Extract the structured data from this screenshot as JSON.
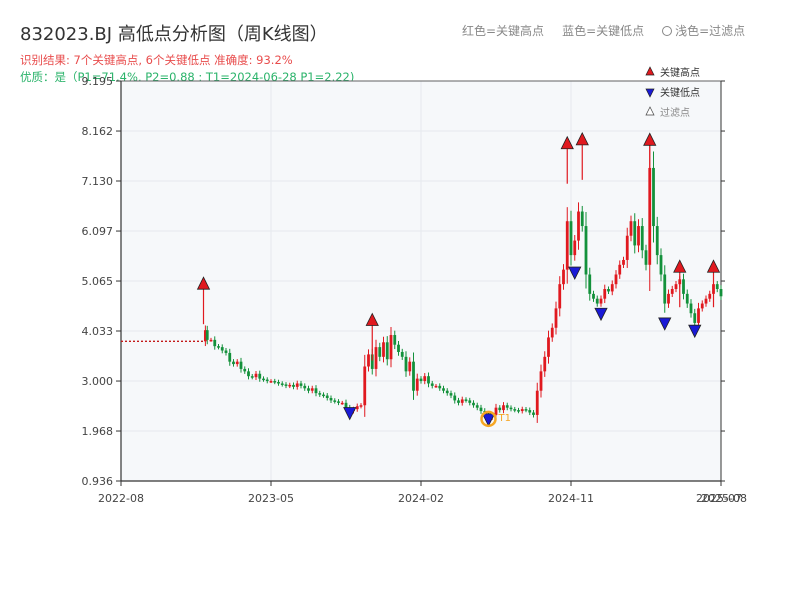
{
  "title": "832023.BJ 高低点分析图（周K线图）",
  "subtitle1": "识别结果: 7个关键高点, 6个关键低点  准确度: 93.2%",
  "subtitle2": "优质：是（P1=71.4%, P2=0.88 ; T1=2024-06-28 P1=2.22)",
  "top_legend": {
    "red_high": "红色=关键高点",
    "blue_low": "蓝色=关键低点",
    "filtered": "浅色=过滤点"
  },
  "colors": {
    "up": "#e0191f",
    "down": "#13913b",
    "high_marker": "#e0191f",
    "low_marker": "#1a1ad6",
    "grid": "#e6e9ee",
    "plot_bg": "#f6f8fa",
    "ref_line": "#c21a1a",
    "highlight_ring": "#f5a623"
  },
  "chart_data": {
    "type": "candlestick",
    "xlabel": "",
    "ylabel": "",
    "ylim": [
      0.936,
      9.195
    ],
    "y_ticks": [
      "0.936",
      "1.968",
      "3.000",
      "4.033",
      "5.065",
      "6.097",
      "7.130",
      "8.162",
      "9.195"
    ],
    "x_ticks": [
      "2022-08",
      "2023-05",
      "2024-02",
      "2024-11",
      "2025-07",
      "2025-08"
    ],
    "x_range_weeks": [
      0,
      160
    ],
    "legend": {
      "placement": "top-right",
      "entries": [
        "关键高点",
        "关键低点",
        "过滤点"
      ]
    },
    "reference_line": {
      "value": 3.82,
      "from_week": 0,
      "to_week": 22
    },
    "key_highs": [
      {
        "week": 22,
        "value": 5.0
      },
      {
        "week": 67,
        "value": 4.25
      },
      {
        "week": 119,
        "value": 7.9
      },
      {
        "week": 123,
        "value": 7.98
      },
      {
        "week": 141,
        "value": 7.97
      },
      {
        "week": 149,
        "value": 5.35
      },
      {
        "week": 158,
        "value": 5.35
      }
    ],
    "key_lows": [
      {
        "week": 61,
        "value": 2.35
      },
      {
        "week": 98,
        "value": 2.22
      },
      {
        "week": 121,
        "value": 5.25
      },
      {
        "week": 128,
        "value": 4.4
      },
      {
        "week": 145,
        "value": 4.2
      },
      {
        "week": 153,
        "value": 4.05
      }
    ],
    "highlight_point": {
      "week": 98,
      "value": 2.22,
      "label": "T1"
    },
    "price_path": [
      [
        22,
        3.82
      ],
      [
        22.5,
        4.05
      ],
      [
        23,
        3.85
      ],
      [
        24,
        3.85
      ],
      [
        25,
        3.72
      ],
      [
        26,
        3.7
      ],
      [
        27,
        3.63
      ],
      [
        28,
        3.58
      ],
      [
        29,
        3.4
      ],
      [
        30,
        3.35
      ],
      [
        31,
        3.4
      ],
      [
        32,
        3.25
      ],
      [
        33,
        3.2
      ],
      [
        34,
        3.1
      ],
      [
        35,
        3.08
      ],
      [
        36,
        3.15
      ],
      [
        37,
        3.05
      ],
      [
        38,
        3.03
      ],
      [
        39,
        3.0
      ],
      [
        40,
        3.0
      ],
      [
        41,
        2.98
      ],
      [
        42,
        2.95
      ],
      [
        43,
        2.93
      ],
      [
        44,
        2.9
      ],
      [
        45,
        2.92
      ],
      [
        46,
        2.88
      ],
      [
        47,
        2.95
      ],
      [
        48,
        2.9
      ],
      [
        49,
        2.85
      ],
      [
        50,
        2.8
      ],
      [
        51,
        2.85
      ],
      [
        52,
        2.75
      ],
      [
        53,
        2.72
      ],
      [
        54,
        2.7
      ],
      [
        55,
        2.65
      ],
      [
        56,
        2.6
      ],
      [
        57,
        2.58
      ],
      [
        58,
        2.55
      ],
      [
        59,
        2.55
      ],
      [
        60,
        2.45
      ],
      [
        61,
        2.38
      ],
      [
        62,
        2.42
      ],
      [
        63,
        2.48
      ],
      [
        64,
        2.5
      ],
      [
        65,
        3.3
      ],
      [
        66,
        3.55
      ],
      [
        67,
        3.25
      ],
      [
        68,
        3.7
      ],
      [
        69,
        3.5
      ],
      [
        70,
        3.8
      ],
      [
        71,
        3.45
      ],
      [
        72,
        3.95
      ],
      [
        73,
        3.75
      ],
      [
        74,
        3.6
      ],
      [
        75,
        3.5
      ],
      [
        76,
        3.2
      ],
      [
        77,
        3.4
      ],
      [
        78,
        2.8
      ],
      [
        79,
        3.05
      ],
      [
        80,
        3.0
      ],
      [
        81,
        3.1
      ],
      [
        82,
        2.95
      ],
      [
        83,
        2.9
      ],
      [
        84,
        2.9
      ],
      [
        85,
        2.85
      ],
      [
        86,
        2.8
      ],
      [
        87,
        2.75
      ],
      [
        88,
        2.7
      ],
      [
        89,
        2.6
      ],
      [
        90,
        2.55
      ],
      [
        91,
        2.62
      ],
      [
        92,
        2.6
      ],
      [
        93,
        2.55
      ],
      [
        94,
        2.5
      ],
      [
        95,
        2.45
      ],
      [
        96,
        2.38
      ],
      [
        97,
        2.3
      ],
      [
        98,
        2.25
      ],
      [
        99,
        2.3
      ],
      [
        100,
        2.45
      ],
      [
        101,
        2.4
      ],
      [
        102,
        2.5
      ],
      [
        103,
        2.45
      ],
      [
        104,
        2.42
      ],
      [
        105,
        2.4
      ],
      [
        106,
        2.38
      ],
      [
        107,
        2.42
      ],
      [
        108,
        2.4
      ],
      [
        109,
        2.35
      ],
      [
        110,
        2.3
      ],
      [
        111,
        2.8
      ],
      [
        112,
        3.2
      ],
      [
        113,
        3.5
      ],
      [
        114,
        3.9
      ],
      [
        115,
        4.1
      ],
      [
        116,
        4.5
      ],
      [
        117,
        5.0
      ],
      [
        118,
        5.3
      ],
      [
        119,
        6.3
      ],
      [
        120,
        5.6
      ],
      [
        121,
        5.9
      ],
      [
        122,
        6.5
      ],
      [
        123,
        6.2
      ],
      [
        124,
        5.2
      ],
      [
        125,
        4.8
      ],
      [
        126,
        4.7
      ],
      [
        127,
        4.6
      ],
      [
        128,
        4.7
      ],
      [
        129,
        4.9
      ],
      [
        130,
        4.85
      ],
      [
        131,
        5.0
      ],
      [
        132,
        5.2
      ],
      [
        133,
        5.4
      ],
      [
        134,
        5.5
      ],
      [
        135,
        6.0
      ],
      [
        136,
        6.3
      ],
      [
        137,
        5.8
      ],
      [
        138,
        6.2
      ],
      [
        139,
        5.7
      ],
      [
        140,
        5.4
      ],
      [
        141,
        7.4
      ],
      [
        142,
        6.2
      ],
      [
        143,
        5.6
      ],
      [
        144,
        5.2
      ],
      [
        145,
        4.6
      ],
      [
        146,
        4.8
      ],
      [
        147,
        4.9
      ],
      [
        148,
        5.0
      ],
      [
        149,
        5.1
      ],
      [
        150,
        4.8
      ],
      [
        151,
        4.6
      ],
      [
        152,
        4.4
      ],
      [
        153,
        4.2
      ],
      [
        154,
        4.5
      ],
      [
        155,
        4.6
      ],
      [
        156,
        4.7
      ],
      [
        157,
        4.8
      ],
      [
        158,
        5.0
      ],
      [
        159,
        4.9
      ],
      [
        160,
        4.75
      ]
    ]
  }
}
